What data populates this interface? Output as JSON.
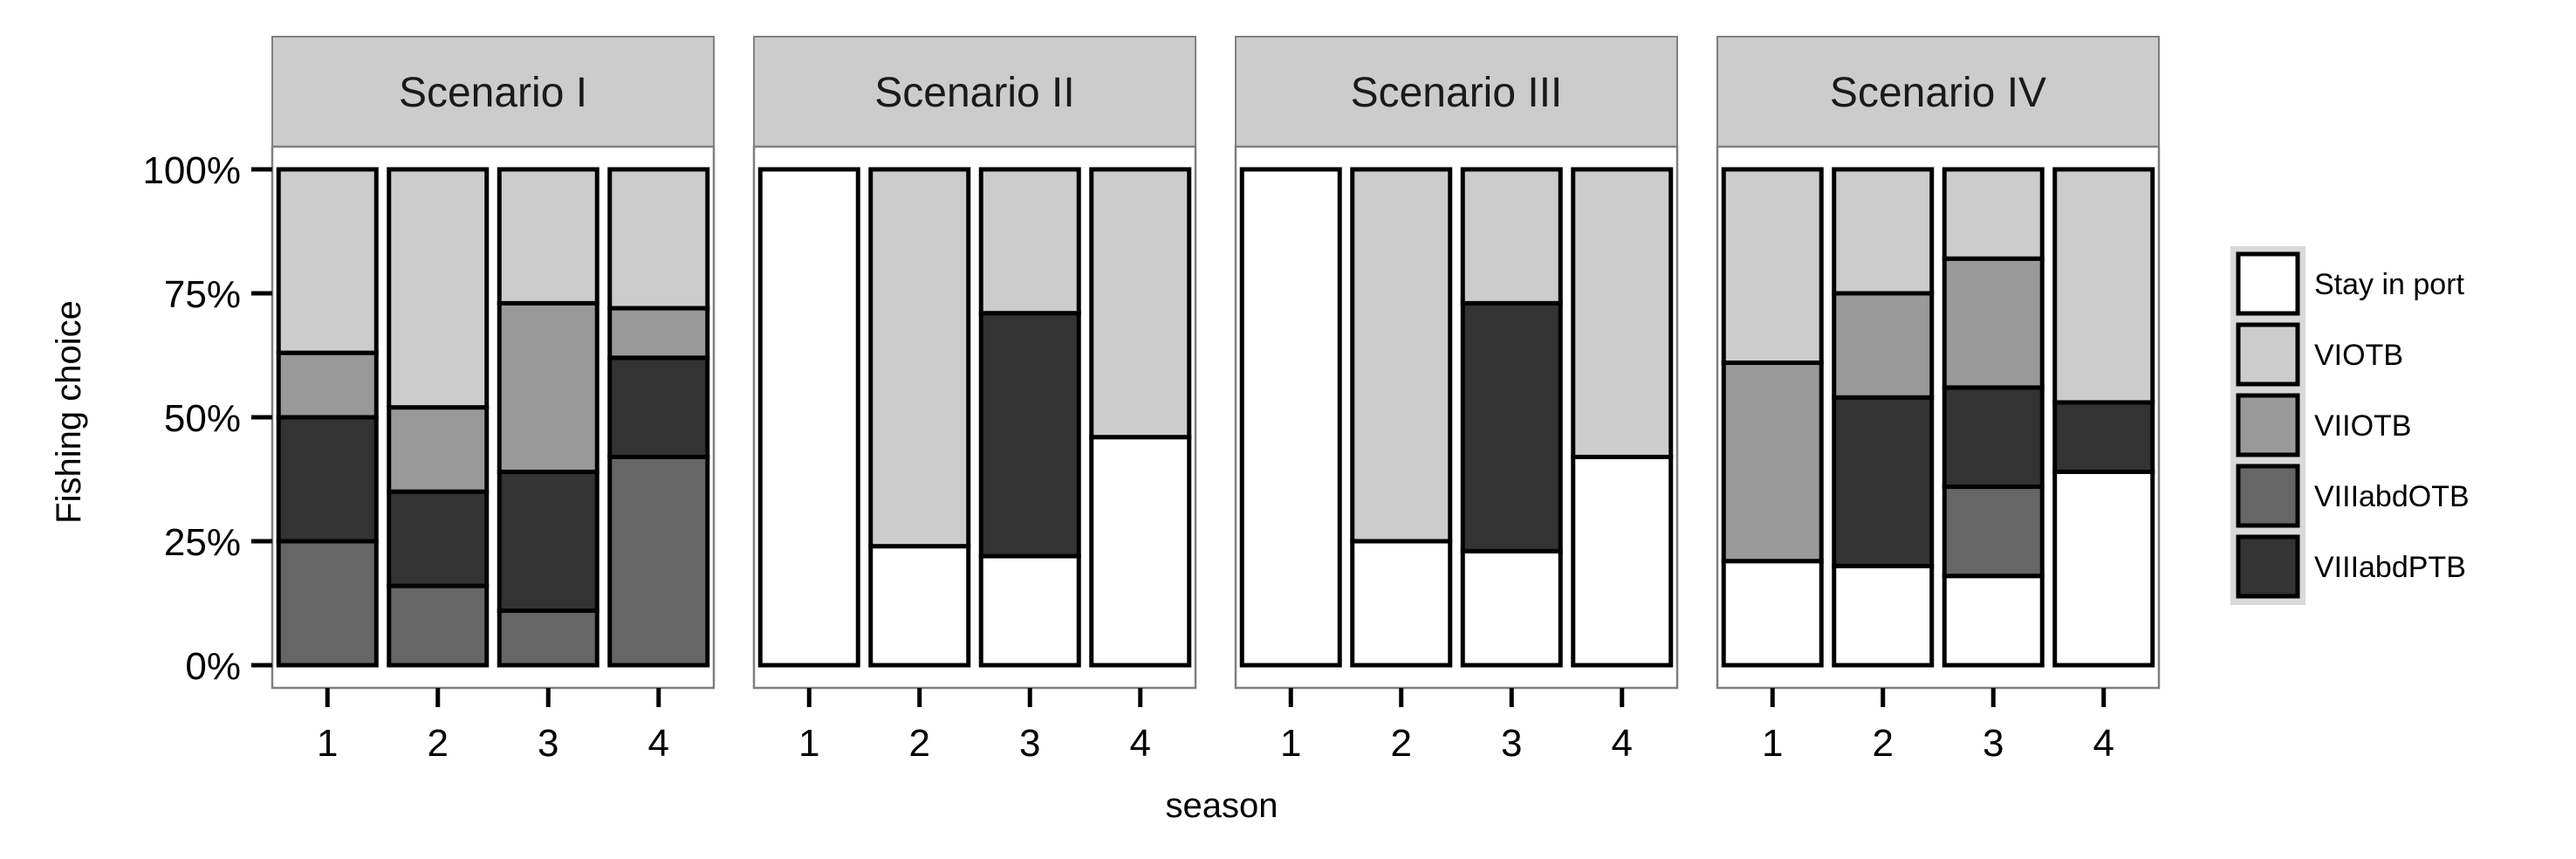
{
  "chart_data": {
    "type": "bar",
    "stacked": true,
    "xlabel": "season",
    "ylabel": "Fishing choice",
    "ylim": [
      0,
      100
    ],
    "yticks": [
      "0%",
      "25%",
      "50%",
      "75%",
      "100%"
    ],
    "yticks_values": [
      0,
      25,
      50,
      75,
      100
    ],
    "categories": [
      "1",
      "2",
      "3",
      "4"
    ],
    "legend": {
      "position": "right",
      "entries": [
        "Stay in port",
        "VIOTB",
        "VIIOTB",
        "VIIIabdOTB",
        "VIIIabdPTB"
      ]
    },
    "colors": {
      "Stay in port": "#ffffff",
      "VIOTB": "#cccccc",
      "VIIOTB": "#999999",
      "VIIIabdOTB": "#666666",
      "VIIIabdPTB": "#333333"
    },
    "stack_order_bottom_to_top": [
      "Stay in port",
      "VIIIabdOTB",
      "VIIIabdPTB",
      "VIIOTB",
      "VIOTB"
    ],
    "panels": [
      {
        "title": "Scenario I",
        "series": [
          {
            "name": "Stay in port",
            "values": [
              0,
              0,
              0,
              0
            ]
          },
          {
            "name": "VIOTB",
            "values": [
              37,
              48,
              27,
              28
            ]
          },
          {
            "name": "VIIOTB",
            "values": [
              13,
              17,
              34,
              10
            ]
          },
          {
            "name": "VIIIabdOTB",
            "values": [
              25,
              16,
              11,
              42
            ]
          },
          {
            "name": "VIIIabdPTB",
            "values": [
              25,
              19,
              28,
              20
            ]
          }
        ]
      },
      {
        "title": "Scenario II",
        "series": [
          {
            "name": "Stay in port",
            "values": [
              100,
              24,
              22,
              46
            ]
          },
          {
            "name": "VIOTB",
            "values": [
              0,
              76,
              29,
              54
            ]
          },
          {
            "name": "VIIOTB",
            "values": [
              0,
              0,
              0,
              0
            ]
          },
          {
            "name": "VIIIabdOTB",
            "values": [
              0,
              0,
              0,
              0
            ]
          },
          {
            "name": "VIIIabdPTB",
            "values": [
              0,
              0,
              49,
              0
            ]
          }
        ]
      },
      {
        "title": "Scenario III",
        "series": [
          {
            "name": "Stay in port",
            "values": [
              100,
              25,
              23,
              42
            ]
          },
          {
            "name": "VIOTB",
            "values": [
              0,
              75,
              27,
              58
            ]
          },
          {
            "name": "VIIOTB",
            "values": [
              0,
              0,
              0,
              0
            ]
          },
          {
            "name": "VIIIabdOTB",
            "values": [
              0,
              0,
              0,
              0
            ]
          },
          {
            "name": "VIIIabdPTB",
            "values": [
              0,
              0,
              50,
              0
            ]
          }
        ]
      },
      {
        "title": "Scenario IV",
        "series": [
          {
            "name": "Stay in port",
            "values": [
              21,
              20,
              18,
              39
            ]
          },
          {
            "name": "VIOTB",
            "values": [
              39,
              25,
              18,
              47
            ]
          },
          {
            "name": "VIIOTB",
            "values": [
              40,
              21,
              26,
              0
            ]
          },
          {
            "name": "VIIIabdOTB",
            "values": [
              0,
              0,
              18,
              0
            ]
          },
          {
            "name": "VIIIabdPTB",
            "values": [
              0,
              34,
              20,
              14
            ]
          }
        ]
      }
    ]
  }
}
